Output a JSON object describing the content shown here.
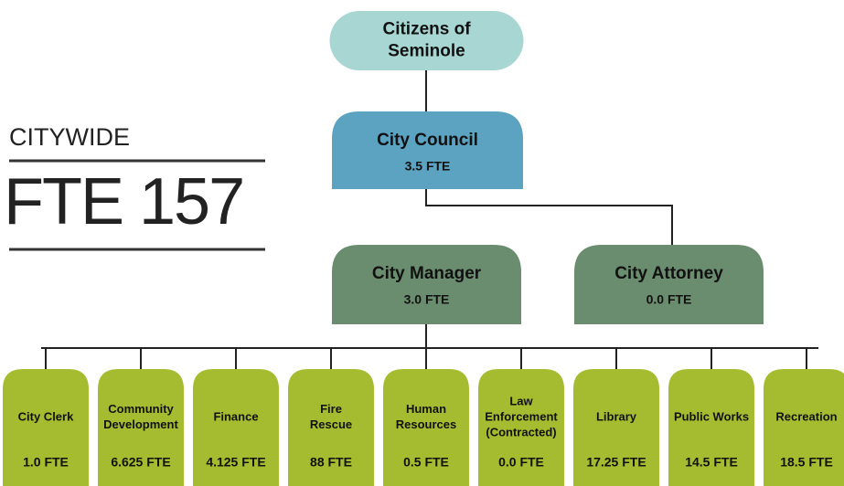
{
  "summary": {
    "label": "CITYWIDE",
    "total": "FTE 157"
  },
  "top": [
    {
      "label": [
        "Citizens of",
        "Seminole"
      ]
    },
    {
      "label": [
        "City Council"
      ],
      "fte": "3.5 FTE"
    },
    {
      "label": [
        "City Manager"
      ],
      "fte": "3.0 FTE"
    },
    {
      "label": [
        "City Attorney"
      ],
      "fte": "0.0 FTE"
    }
  ],
  "departments": [
    {
      "label": [
        "City Clerk"
      ],
      "fte": "1.0 FTE"
    },
    {
      "label": [
        "Community",
        "Development"
      ],
      "fte": "6.625 FTE"
    },
    {
      "label": [
        "Finance"
      ],
      "fte": "4.125 FTE"
    },
    {
      "label": [
        "Fire",
        "Rescue"
      ],
      "fte": "88 FTE"
    },
    {
      "label": [
        "Human",
        "Resources"
      ],
      "fte": "0.5 FTE"
    },
    {
      "label": [
        "Law",
        "Enforcement",
        "(Contracted)"
      ],
      "fte": "0.0 FTE"
    },
    {
      "label": [
        "Library"
      ],
      "fte": "17.25 FTE"
    },
    {
      "label": [
        "Public Works"
      ],
      "fte": "14.5 FTE"
    },
    {
      "label": [
        "Recreation"
      ],
      "fte": "18.5 FTE"
    }
  ]
}
